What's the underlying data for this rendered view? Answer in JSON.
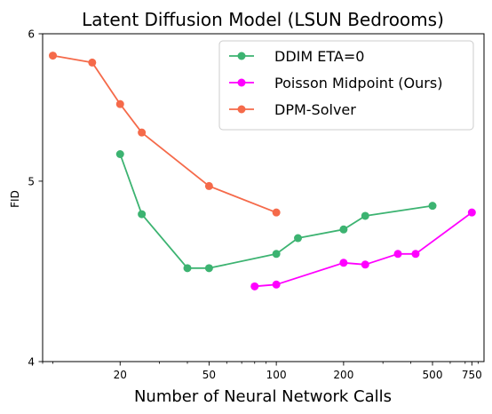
{
  "chart_data": {
    "type": "line",
    "title": "Latent Diffusion Model (LSUN Bedrooms)",
    "xlabel": "Number of Neural Network Calls",
    "ylabel": "FID",
    "xscale": "log",
    "yscale": "log",
    "xlim": [
      9,
      850
    ],
    "ylim": [
      4,
      6
    ],
    "xticks": [
      20,
      50,
      100,
      200,
      500,
      750
    ],
    "xtick_labels": [
      "20",
      "50",
      "100",
      "200",
      "500",
      "750"
    ],
    "yticks": [
      4,
      5,
      6
    ],
    "ytick_labels": [
      "4",
      "5",
      "6"
    ],
    "legend_position": "top-right",
    "grid": false,
    "series": [
      {
        "name": "DDIM ETA=0",
        "color": "#3cb371",
        "x": [
          20,
          25,
          40,
          50,
          100,
          125,
          200,
          250,
          500
        ],
        "y": [
          5.17,
          4.8,
          4.49,
          4.49,
          4.57,
          4.66,
          4.71,
          4.79,
          4.85
        ]
      },
      {
        "name": "Poisson Midpoint (Ours)",
        "color": "#ff00ff",
        "x": [
          80,
          100,
          200,
          250,
          350,
          420,
          750
        ],
        "y": [
          4.39,
          4.4,
          4.52,
          4.51,
          4.57,
          4.57,
          4.81
        ]
      },
      {
        "name": "DPM-Solver",
        "color": "#f56a4a",
        "x": [
          10,
          15,
          20,
          25,
          50,
          100
        ],
        "y": [
          5.84,
          5.79,
          5.5,
          5.31,
          4.97,
          4.81
        ]
      }
    ]
  }
}
